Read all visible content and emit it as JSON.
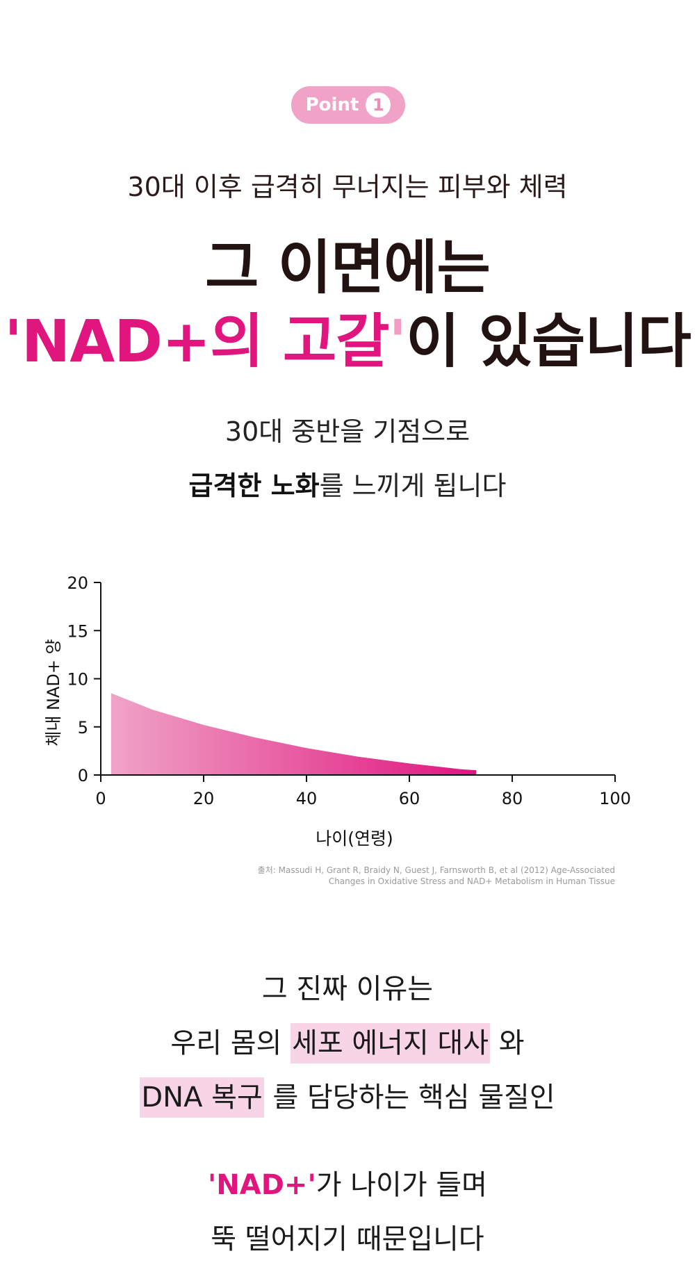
{
  "badge": {
    "label": "Point",
    "number": "1"
  },
  "sub_headline": "30대 이후 급격히 무너지는 피부와 체력",
  "headline": {
    "line1": "그 이면에는",
    "line2_quote_open": "'",
    "line2_pink": "NAD+의 고갈",
    "line2_quote_close": "'",
    "line2_rest": "이 있습니다"
  },
  "intro": {
    "line1": "30대 중반을 기점으로",
    "line2_bold": "급격한 노화",
    "line2_rest": "를 느끼게 됩니다"
  },
  "chart_data": {
    "type": "area",
    "xlabel": "나이(연령)",
    "ylabel": "체내 NAD+ 양",
    "xlim": [
      0,
      100
    ],
    "ylim": [
      0,
      20
    ],
    "xticks": [
      "0",
      "20",
      "40",
      "60",
      "80",
      "100"
    ],
    "yticks": [
      "0",
      "5",
      "10",
      "15",
      "20"
    ],
    "grid": false,
    "colors": {
      "start": "#f0a3c7",
      "end": "#e0157e"
    },
    "x": [
      2,
      10,
      20,
      30,
      40,
      50,
      60,
      70,
      73
    ],
    "y": [
      8.5,
      6.8,
      5.2,
      3.9,
      2.8,
      1.9,
      1.2,
      0.6,
      0.5
    ]
  },
  "source": {
    "line1": "출처: Massudi H, Grant R, Braidy N, Guest J, Farnsworth B, et al (2012) Age-Associated",
    "line2": "Changes in Oxidative Stress and NAD+ Metabolism in Human Tissue"
  },
  "body": {
    "line1": "그 진짜 이유는",
    "line2_pre": "우리 몸의 ",
    "line2_hl": "세포 에너지 대사",
    "line2_post": " 와",
    "line3_hl": "DNA 복구",
    "line3_post": " 를 담당하는 핵심 물질인",
    "line4_pink": "'NAD+'",
    "line4_rest": "가 나이가 들며",
    "line5": "뚝 떨어지기 때문입니다"
  }
}
